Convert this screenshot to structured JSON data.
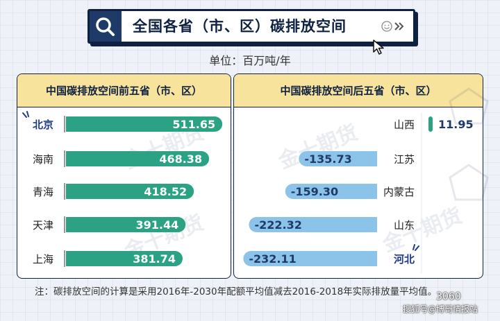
{
  "title": "全国各省（市、区）碳排放空间",
  "unit": "单位：百万吨/年",
  "watermark": "金十期货",
  "left_panel": {
    "heading": "中国碳排放空间前五省（市、区）"
  },
  "right_panel": {
    "heading": "中国碳排放空间后五省（市、区）"
  },
  "note": "注：碳排放空间的计算是采用2016年-2030年配额平均值减去2016-2018年实际排放量平均值。",
  "credit": "搜狐号@博哥情报站",
  "logo_text": "3060",
  "colors": {
    "positive": "#2aa283",
    "negative": "#8cc3e8",
    "highlight_label": "#1e3a8a",
    "header_bg": "#f8e39c"
  },
  "chart_data": [
    {
      "type": "bar",
      "title": "中国碳排放空间前五省（市、区）",
      "unit": "百万吨/年",
      "categories": [
        "北京",
        "海南",
        "青海",
        "天津",
        "上海"
      ],
      "values": [
        511.65,
        468.38,
        418.52,
        391.44,
        381.74
      ],
      "highlight": "北京",
      "value_labels": [
        "511.65",
        "468.38",
        "418.52",
        "391.44",
        "381.74"
      ]
    },
    {
      "type": "bar",
      "title": "中国碳排放空间后五省（市、区）",
      "unit": "百万吨/年",
      "categories": [
        "山西",
        "江苏",
        "内蒙古",
        "山东",
        "河北"
      ],
      "values": [
        11.95,
        -135.73,
        -159.3,
        -222.32,
        -232.11
      ],
      "highlight": "河北",
      "value_labels": [
        "11.95",
        "-135.73",
        "-159.30",
        "-222.32",
        "-232.11"
      ]
    }
  ]
}
